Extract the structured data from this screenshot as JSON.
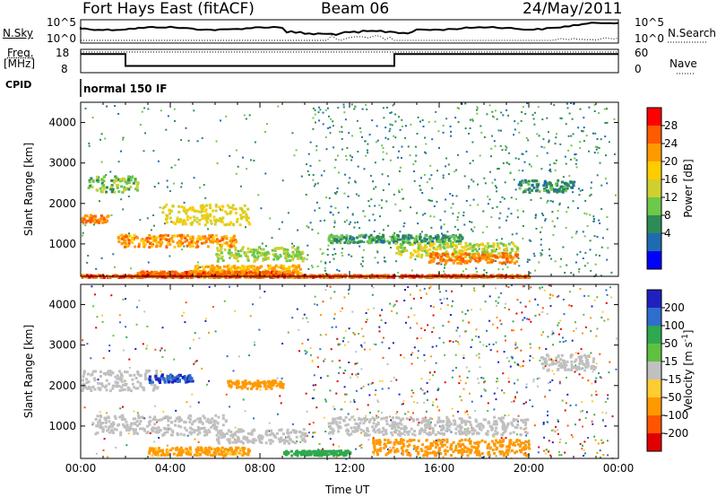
{
  "header": {
    "radar": "Fort Hays East (fitACF)",
    "beam": "Beam 06",
    "date": "24/May/2011"
  },
  "summary": {
    "nsky_label": "N.Sky",
    "nsearch_label": "N.Search",
    "freq_label_1": "Freq.",
    "freq_label_2": "[MHz]",
    "nave_label": "Nave",
    "cpid_label": "CPID",
    "mode_text": "normal 150 IF",
    "noise_ticks": [
      "10^5",
      "10^0"
    ],
    "freq_ticks": [
      "18",
      "8"
    ],
    "nave_ticks": [
      "60",
      "0"
    ],
    "frequency_steps": [
      {
        "start_hour": 0,
        "end_hour": 2,
        "freq_mhz": 16.5
      },
      {
        "start_hour": 2,
        "end_hour": 14,
        "freq_mhz": 10.5
      },
      {
        "start_hour": 14,
        "end_hour": 24,
        "freq_mhz": 16.5
      }
    ]
  },
  "chart_data": [
    {
      "type": "heatmap",
      "parameter": "power",
      "ylabel": "Slant Range [km]",
      "y_ticks": [
        1000,
        2000,
        3000,
        4000
      ],
      "ylim": [
        200,
        4500
      ],
      "xlim": [
        0,
        24
      ],
      "colorbar": {
        "label": "Power [dB]",
        "ticks": [
          "28",
          "24",
          "20",
          "16",
          "12",
          "8",
          "4"
        ],
        "colors": [
          "#ff0000",
          "#ff5a00",
          "#ff9900",
          "#ffcc00",
          "#cfd02f",
          "#6ec84a",
          "#2e8b57",
          "#1f6bb0",
          "#0000ff"
        ]
      },
      "regions": [
        {
          "t0": 0.0,
          "t1": 1.2,
          "r0": 1550,
          "r1": 1750,
          "dB": 26
        },
        {
          "t0": 1.6,
          "t1": 7.0,
          "r0": 950,
          "r1": 1250,
          "dB": 24
        },
        {
          "t0": 3.6,
          "t1": 7.5,
          "r0": 1500,
          "r1": 2000,
          "dB": 18
        },
        {
          "t0": 5.0,
          "t1": 9.8,
          "r0": 300,
          "r1": 500,
          "dB": 22
        },
        {
          "t0": 2.5,
          "t1": 9.5,
          "r0": 250,
          "r1": 350,
          "dB": 27
        },
        {
          "t0": 6.0,
          "t1": 10.0,
          "r0": 600,
          "r1": 950,
          "dB": 14
        },
        {
          "t0": 0.3,
          "t1": 2.5,
          "r0": 2300,
          "r1": 2700,
          "dB": 12
        },
        {
          "t0": 11.0,
          "t1": 17.0,
          "r0": 1050,
          "r1": 1250,
          "dB": 9
        },
        {
          "t0": 14.0,
          "t1": 19.5,
          "r0": 700,
          "r1": 1050,
          "dB": 16
        },
        {
          "t0": 15.5,
          "t1": 19.5,
          "r0": 550,
          "r1": 800,
          "dB": 26
        },
        {
          "t0": 19.5,
          "t1": 22.0,
          "r0": 2300,
          "r1": 2600,
          "dB": 8
        },
        {
          "t0": 0.0,
          "t1": 20.0,
          "r0": 200,
          "r1": 260,
          "dB": 28
        }
      ]
    },
    {
      "type": "heatmap",
      "parameter": "velocity",
      "ylabel": "Slant Range [km]",
      "xlabel": "Time UT",
      "y_ticks": [
        1000,
        2000,
        3000,
        4000
      ],
      "ylim": [
        200,
        4500
      ],
      "xlim": [
        0,
        24
      ],
      "x_ticks": [
        "00:00",
        "04:00",
        "08:00",
        "12:00",
        "16:00",
        "20:00",
        "00:00"
      ],
      "colorbar": {
        "label": "Velocity [m s-1]",
        "label_main": "Velocity [m s",
        "label_exp": "-1",
        "label_end": "]",
        "ticks": [
          "200",
          "100",
          "50",
          "15",
          "-15",
          "-50",
          "-100",
          "-200"
        ],
        "colors": [
          "#2020c0",
          "#2e6ecc",
          "#2fa84f",
          "#60c040",
          "#c0c0c0",
          "#ffcc33",
          "#ff9900",
          "#ff5500",
          "#e00000"
        ]
      },
      "regions": [
        {
          "t0": 0.0,
          "t1": 3.5,
          "r0": 1900,
          "r1": 2400,
          "ms": 0
        },
        {
          "t0": 0.5,
          "t1": 6.5,
          "r0": 800,
          "r1": 1300,
          "ms": 0
        },
        {
          "t0": 3.0,
          "t1": 5.0,
          "r0": 2100,
          "r1": 2300,
          "ms": 150
        },
        {
          "t0": 6.5,
          "t1": 9.0,
          "r0": 1950,
          "r1": 2150,
          "ms": -50
        },
        {
          "t0": 3.0,
          "t1": 7.5,
          "r0": 300,
          "r1": 500,
          "ms": -40
        },
        {
          "t0": 6.0,
          "t1": 10.0,
          "r0": 600,
          "r1": 950,
          "ms": 0
        },
        {
          "t0": 9.0,
          "t1": 12.0,
          "r0": 300,
          "r1": 420,
          "ms": 60
        },
        {
          "t0": 11.0,
          "t1": 20.0,
          "r0": 800,
          "r1": 1250,
          "ms": 0
        },
        {
          "t0": 13.0,
          "t1": 20.0,
          "r0": 300,
          "r1": 700,
          "ms": -60
        },
        {
          "t0": 20.5,
          "t1": 23.0,
          "r0": 2400,
          "r1": 2800,
          "ms": 0
        }
      ]
    }
  ]
}
